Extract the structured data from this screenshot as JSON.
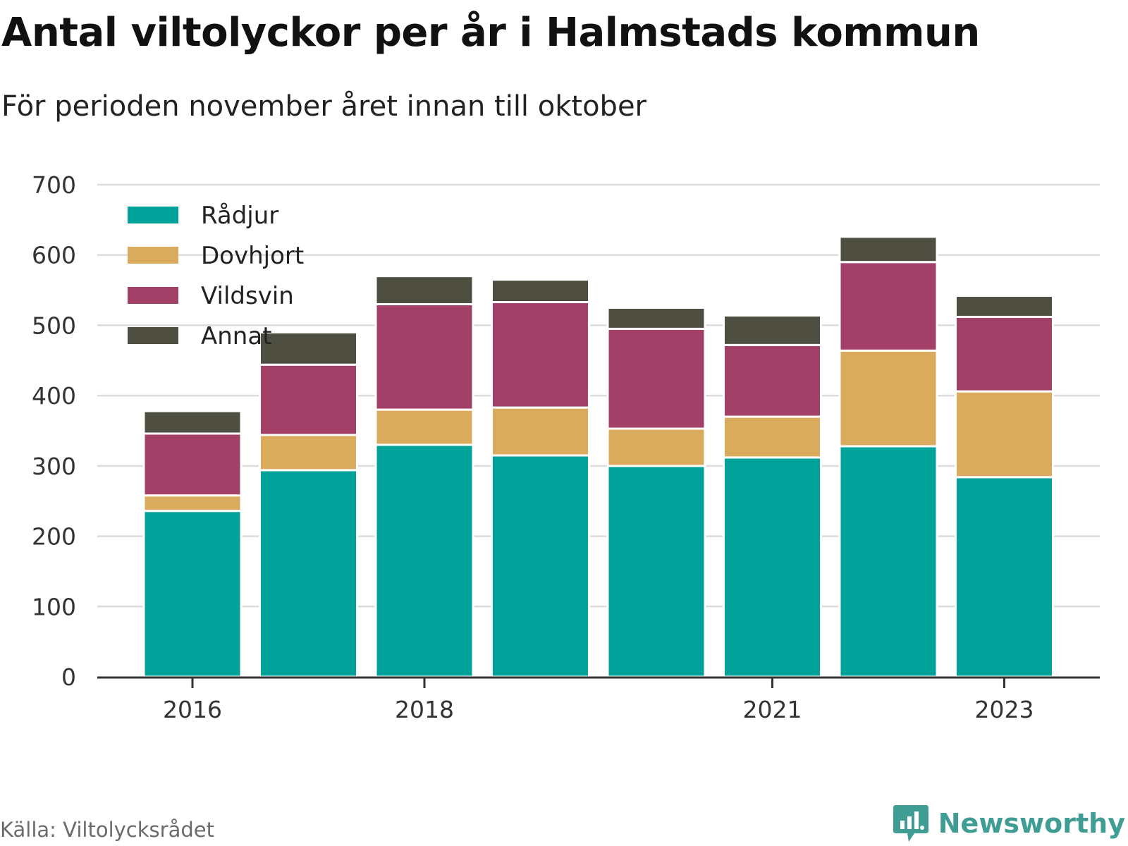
{
  "header": {
    "title": "Antal viltolyckor per år i Halmstads kommun",
    "subtitle": "För perioden november året innan till oktober"
  },
  "footer": {
    "source": "Källa: Viltolycksrådet",
    "brand": "Newsworthy",
    "brand_color": "#3f9d94"
  },
  "chart_data": {
    "type": "bar",
    "stacked": true,
    "categories": [
      "2016",
      "2017",
      "2018",
      "2019",
      "2020",
      "2021",
      "2022",
      "2023"
    ],
    "x_tick_labels": [
      "2016",
      "2018",
      "2021",
      "2023"
    ],
    "ylim": [
      0,
      700
    ],
    "yticks": [
      0,
      100,
      200,
      300,
      400,
      500,
      600,
      700
    ],
    "grid": true,
    "legend_placement": "top-left",
    "series": [
      {
        "name": "Rådjur",
        "color": "#00a29a",
        "values": [
          236,
          294,
          330,
          315,
          300,
          312,
          328,
          284
        ]
      },
      {
        "name": "Dovhjort",
        "color": "#dbab5d",
        "values": [
          22,
          50,
          50,
          68,
          53,
          58,
          136,
          122
        ]
      },
      {
        "name": "Vildsvin",
        "color": "#a34068",
        "values": [
          88,
          100,
          150,
          150,
          142,
          102,
          126,
          106
        ]
      },
      {
        "name": "Annat",
        "color": "#4e4f41",
        "values": [
          32,
          46,
          40,
          32,
          30,
          42,
          36,
          30
        ]
      }
    ]
  }
}
